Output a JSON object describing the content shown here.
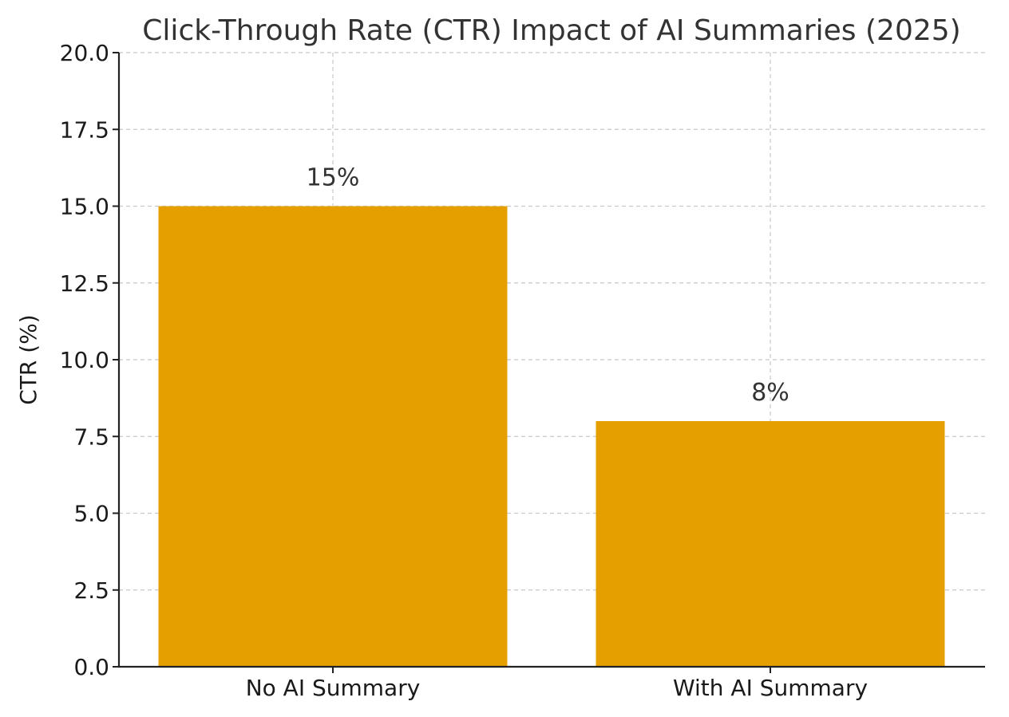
{
  "chart_data": {
    "type": "bar",
    "title": "Click-Through Rate (CTR) Impact of AI Summaries (2025)",
    "xlabel": "",
    "ylabel": "CTR (%)",
    "categories": [
      "No AI Summary",
      "With AI Summary"
    ],
    "values": [
      15,
      8
    ],
    "value_labels": [
      "15%",
      "8%"
    ],
    "ylim": [
      0,
      20
    ],
    "yticks": [
      0,
      2.5,
      5,
      7.5,
      10,
      12.5,
      15,
      17.5,
      20
    ],
    "ytick_labels": [
      "0.0",
      "2.5",
      "5.0",
      "7.5",
      "10.0",
      "12.5",
      "15.0",
      "17.5",
      "20.0"
    ],
    "bar_color": "#E5A000",
    "grid": true
  }
}
